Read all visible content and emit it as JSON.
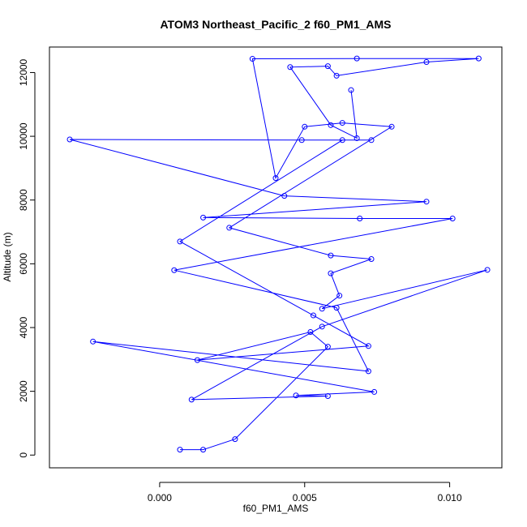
{
  "chart_data": {
    "type": "line",
    "title": "ATOM3 Northeast_Pacific_2 f60_PM1_AMS",
    "xlabel": "f60_PM1_AMS",
    "ylabel": "Altitude (m)",
    "xlim": [
      -0.0038,
      0.0118
    ],
    "ylim": [
      -400,
      12800
    ],
    "xticks": [
      0.0,
      0.005,
      0.01
    ],
    "xtick_labels": [
      "0.000",
      "0.005",
      "0.010"
    ],
    "yticks": [
      0,
      2000,
      4000,
      6000,
      8000,
      10000,
      12000
    ],
    "ytick_labels": [
      "0",
      "2000",
      "4000",
      "6000",
      "8000",
      "10000",
      "12000"
    ],
    "grid": false,
    "series": [
      {
        "color": "#0000ff",
        "marker": "open-circle",
        "points": [
          [
            0.0007,
            170
          ],
          [
            0.0015,
            170
          ],
          [
            0.0026,
            500
          ],
          [
            0.0058,
            3400
          ],
          [
            0.0052,
            3860
          ],
          [
            0.0013,
            2980
          ],
          [
            0.0072,
            3420
          ],
          [
            0.0053,
            4380
          ],
          [
            0.0007,
            6700
          ],
          [
            0.0063,
            9880
          ],
          [
            0.0073,
            9880
          ],
          [
            0.0049,
            9880
          ],
          [
            -0.0031,
            9900
          ],
          [
            0.0043,
            8130
          ],
          [
            0.0092,
            7950
          ],
          [
            0.0015,
            7450
          ],
          [
            0.0069,
            7420
          ],
          [
            0.0101,
            7420
          ],
          [
            0.0005,
            5800
          ],
          [
            0.0061,
            4620
          ],
          [
            0.0072,
            2630
          ],
          [
            -0.0023,
            3560
          ],
          [
            0.0074,
            1980
          ],
          [
            0.0047,
            1870
          ],
          [
            0.0058,
            1850
          ],
          [
            0.0011,
            1740
          ],
          [
            0.0056,
            4030
          ],
          [
            0.0113,
            5810
          ],
          [
            0.0056,
            4590
          ],
          [
            0.0062,
            5000
          ],
          [
            0.0059,
            5700
          ],
          [
            0.0073,
            6150
          ],
          [
            0.0059,
            6260
          ],
          [
            0.0024,
            7130
          ],
          [
            0.008,
            10300
          ],
          [
            0.0063,
            10420
          ],
          [
            0.005,
            10300
          ],
          [
            0.004,
            8690
          ],
          [
            0.0032,
            12430
          ],
          [
            0.0068,
            12440
          ],
          [
            0.011,
            12440
          ],
          [
            0.0092,
            12330
          ],
          [
            0.0061,
            11900
          ],
          [
            0.0058,
            12200
          ],
          [
            0.0045,
            12170
          ],
          [
            0.0059,
            10350
          ],
          [
            0.0068,
            9940
          ],
          [
            0.0066,
            11450
          ]
        ]
      }
    ]
  }
}
